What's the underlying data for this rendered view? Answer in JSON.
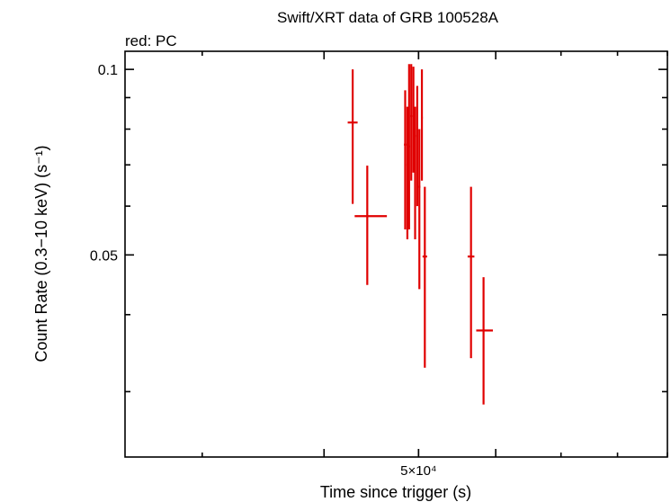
{
  "chart_data": {
    "type": "scatter",
    "title": "Swift/XRT data of GRB 100528A",
    "subtitle": "red: PC",
    "xlabel": "Time since trigger (s)",
    "ylabel": "Count Rate (0.3−10 keV) (s⁻¹)",
    "x_scale": "log",
    "y_scale": "log",
    "xlim": [
      25000,
      90000
    ],
    "ylim": [
      0.0235,
      0.107
    ],
    "x_tick_labels": [
      {
        "value": 50000,
        "label": "5×10⁴"
      }
    ],
    "y_tick_labels": [
      {
        "value": 0.1,
        "label": "0.1"
      },
      {
        "value": 0.05,
        "label": "0.05"
      }
    ],
    "x_major_ticks": [
      40000,
      50000,
      60000
    ],
    "x_minor_ticks": [
      30000,
      70000,
      80000,
      90000
    ],
    "y_minor_ticks": [
      0.03,
      0.04,
      0.06,
      0.07,
      0.08,
      0.09
    ],
    "grid": false,
    "series": [
      {
        "color": "#e00000",
        "marker": "crosshair-errorbar",
        "points": [
          {
            "x": 42800,
            "xerr": [
              500,
              500
            ],
            "y": 0.082,
            "yerr": [
              0.0215,
              0.018
            ]
          },
          {
            "x": 44300,
            "xerr": [
              1300,
              2100
            ],
            "y": 0.0578,
            "yerr": [
              0.0131,
              0.012
            ]
          },
          {
            "x": 48450,
            "xerr": [
              140,
              140
            ],
            "y": 0.0755,
            "yerr": [
              0.0205,
              0.017
            ]
          },
          {
            "x": 48700,
            "xerr": [
              100,
              100
            ],
            "y": 0.07,
            "yerr": [
              0.017,
              0.017
            ]
          },
          {
            "x": 48900,
            "xerr": [
              110,
              110
            ],
            "y": 0.075,
            "yerr": [
              0.02,
              0.027
            ]
          },
          {
            "x": 49150,
            "xerr": [
              110,
              110
            ],
            "y": 0.084,
            "yerr": [
              0.018,
              0.018
            ]
          },
          {
            "x": 49400,
            "xerr": [
              110,
              110
            ],
            "y": 0.085,
            "yerr": [
              0.017,
              0.016
            ]
          },
          {
            "x": 49600,
            "xerr": [
              100,
              100
            ],
            "y": 0.07,
            "yerr": [
              0.017,
              0.017
            ]
          },
          {
            "x": 49850,
            "xerr": [
              110,
              110
            ],
            "y": 0.078,
            "yerr": [
              0.018,
              0.016
            ]
          },
          {
            "x": 50100,
            "xerr": [
              110,
              110
            ],
            "y": 0.0645,
            "yerr": [
              0.0205,
              0.0155
            ]
          },
          {
            "x": 50400,
            "xerr": [
              110,
              110
            ],
            "y": 0.0835,
            "yerr": [
              0.0175,
              0.0165
            ]
          },
          {
            "x": 50750,
            "xerr": [
              270,
              270
            ],
            "y": 0.0497,
            "yerr": [
              0.0169,
              0.0148
            ]
          },
          {
            "x": 56600,
            "xerr": [
              450,
              450
            ],
            "y": 0.0497,
            "yerr": [
              0.0157,
              0.0148
            ]
          },
          {
            "x": 58300,
            "xerr": [
              1000,
              1300
            ],
            "y": 0.0377,
            "yerr": [
              0.0091,
              0.0083
            ]
          }
        ]
      }
    ]
  }
}
